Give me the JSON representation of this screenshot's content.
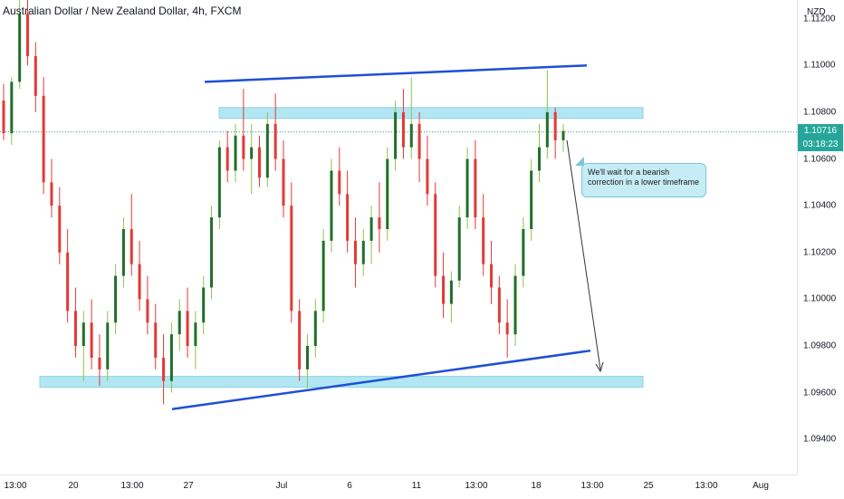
{
  "header": {
    "title": "Australian Dollar / New Zealand Dollar, 4h, FXCM"
  },
  "price_axis": {
    "currency": "NZD",
    "ticks": [
      "1.11200",
      "1.11000",
      "1.10800",
      "1.10600",
      "1.10400",
      "1.10200",
      "1.10000",
      "1.09800",
      "1.09600",
      "1.09400"
    ],
    "last_price": "1.10716",
    "countdown": "03:18:23"
  },
  "time_axis": {
    "ticks": [
      "13:00",
      "20",
      "13:00",
      "27",
      "Jul",
      "6",
      "11",
      "13:00",
      "18",
      "13:00",
      "25",
      "13:00",
      "Aug"
    ]
  },
  "annotation": {
    "text": "We'll wait for a bearish correction in a lower timeframe"
  },
  "colors": {
    "up": "#26a69a",
    "bull_candle": "#1f6f2a",
    "bear_candle": "#e53935",
    "wick_up": "#8bc34a",
    "zone": "#b2e6f2",
    "trendline": "#1e4fd6"
  },
  "chart_data": {
    "type": "candlestick",
    "symbol": "Australian Dollar / New Zealand Dollar",
    "interval": "4h",
    "source": "FXCM",
    "ylim": [
      1.0925,
      1.1128
    ],
    "yticks": [
      1.112,
      1.11,
      1.108,
      1.106,
      1.104,
      1.102,
      1.1,
      1.098,
      1.096,
      1.094
    ],
    "last_price": 1.10716,
    "support_zone": [
      1.0963,
      1.0967
    ],
    "resistance_zone": [
      1.1078,
      1.1082
    ],
    "upper_trendline": [
      [
        1.1093
      ],
      [
        1.11
      ]
    ],
    "lower_trendline": [
      [
        1.0953
      ],
      [
        1.0978
      ]
    ],
    "projection": "down",
    "candles": [
      [
        1.1085,
        1.1092,
        1.1068,
        1.1071
      ],
      [
        1.1071,
        1.1095,
        1.1066,
        1.1093
      ],
      [
        1.1093,
        1.113,
        1.109,
        1.1122
      ],
      [
        1.1122,
        1.113,
        1.11,
        1.1104
      ],
      [
        1.1104,
        1.111,
        1.108,
        1.1087
      ],
      [
        1.1087,
        1.1095,
        1.1045,
        1.105
      ],
      [
        1.105,
        1.106,
        1.1035,
        1.104
      ],
      [
        1.104,
        1.1048,
        1.1015,
        1.102
      ],
      [
        1.102,
        1.103,
        1.099,
        1.0995
      ],
      [
        1.0995,
        1.1005,
        1.0975,
        1.098
      ],
      [
        1.098,
        1.0995,
        1.0965,
        1.099
      ],
      [
        1.099,
        1.1,
        1.097,
        1.0975
      ],
      [
        1.0975,
        1.0985,
        1.0963,
        1.097
      ],
      [
        1.097,
        1.0995,
        1.0965,
        1.099
      ],
      [
        1.099,
        1.1015,
        1.0985,
        1.101
      ],
      [
        1.101,
        1.1035,
        1.1005,
        1.103
      ],
      [
        1.103,
        1.1045,
        1.101,
        1.1015
      ],
      [
        1.1015,
        1.1025,
        1.0995,
        1.1
      ],
      [
        1.1,
        1.101,
        1.0985,
        1.099
      ],
      [
        1.099,
        1.0998,
        1.097,
        1.0975
      ],
      [
        1.0975,
        1.0985,
        1.0955,
        1.0965
      ],
      [
        1.0965,
        1.099,
        1.096,
        1.0985
      ],
      [
        1.0985,
        1.1,
        1.0978,
        1.0995
      ],
      [
        1.0995,
        1.1005,
        1.0975,
        1.098
      ],
      [
        1.098,
        1.0995,
        1.097,
        1.099
      ],
      [
        1.099,
        1.101,
        1.0985,
        1.1005
      ],
      [
        1.1005,
        1.104,
        1.1,
        1.1035
      ],
      [
        1.1035,
        1.1068,
        1.103,
        1.1065
      ],
      [
        1.1065,
        1.1072,
        1.105,
        1.1055
      ],
      [
        1.1055,
        1.1075,
        1.105,
        1.107
      ],
      [
        1.107,
        1.109,
        1.1055,
        1.106
      ],
      [
        1.106,
        1.1075,
        1.1045,
        1.1065
      ],
      [
        1.1065,
        1.107,
        1.1048,
        1.1052
      ],
      [
        1.1052,
        1.108,
        1.1048,
        1.1075
      ],
      [
        1.1075,
        1.1088,
        1.1055,
        1.106
      ],
      [
        1.106,
        1.1068,
        1.1035,
        1.104
      ],
      [
        1.104,
        1.105,
        1.099,
        1.0995
      ],
      [
        1.0995,
        1.1,
        1.0965,
        1.097
      ],
      [
        1.097,
        1.0985,
        1.0962,
        1.098
      ],
      [
        1.098,
        1.1,
        1.0975,
        1.0995
      ],
      [
        1.0995,
        1.103,
        1.099,
        1.1025
      ],
      [
        1.1025,
        1.106,
        1.102,
        1.1055
      ],
      [
        1.1055,
        1.1065,
        1.104,
        1.1045
      ],
      [
        1.1045,
        1.1055,
        1.102,
        1.1025
      ],
      [
        1.1025,
        1.1035,
        1.1005,
        1.1015
      ],
      [
        1.1015,
        1.103,
        1.101,
        1.1025
      ],
      [
        1.1025,
        1.104,
        1.1015,
        1.1035
      ],
      [
        1.1035,
        1.105,
        1.102,
        1.103
      ],
      [
        1.103,
        1.1065,
        1.1025,
        1.106
      ],
      [
        1.106,
        1.1085,
        1.1055,
        1.108
      ],
      [
        1.108,
        1.109,
        1.106,
        1.1065
      ],
      [
        1.1065,
        1.1095,
        1.106,
        1.1075
      ],
      [
        1.1075,
        1.108,
        1.105,
        1.106
      ],
      [
        1.106,
        1.107,
        1.104,
        1.1045
      ],
      [
        1.1045,
        1.105,
        1.1005,
        1.101
      ],
      [
        1.101,
        1.102,
        1.0992,
        1.0998
      ],
      [
        1.0998,
        1.1012,
        1.099,
        1.1008
      ],
      [
        1.1008,
        1.104,
        1.1005,
        1.1035
      ],
      [
        1.1035,
        1.1065,
        1.103,
        1.106
      ],
      [
        1.106,
        1.1068,
        1.103,
        1.1035
      ],
      [
        1.1035,
        1.1045,
        1.101,
        1.1015
      ],
      [
        1.1015,
        1.1025,
        1.0998,
        1.1005
      ],
      [
        1.1005,
        1.101,
        1.0985,
        1.099
      ],
      [
        1.099,
        1.1,
        1.0975,
        1.0985
      ],
      [
        1.0985,
        1.1015,
        1.098,
        1.101
      ],
      [
        1.101,
        1.1035,
        1.1005,
        1.103
      ],
      [
        1.103,
        1.106,
        1.1025,
        1.1055
      ],
      [
        1.1055,
        1.1075,
        1.105,
        1.1065
      ],
      [
        1.1065,
        1.1098,
        1.106,
        1.108
      ],
      [
        1.108,
        1.1082,
        1.106,
        1.1068
      ],
      [
        1.1068,
        1.1075,
        1.1063,
        1.1072
      ]
    ]
  }
}
